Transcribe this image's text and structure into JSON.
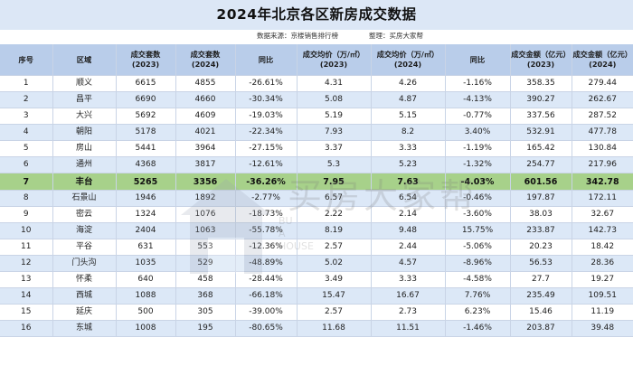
{
  "title": "2024年北京各区新房成交数据",
  "source_label": "数据来源：京楼销售排行榜",
  "organizer_label": "整理：买房大家帮",
  "watermark": {
    "text": "买房大家帮",
    "sub_lines": [
      "BU",
      "A",
      "HOUSE"
    ]
  },
  "colors": {
    "header_bg": "#b9cdea",
    "title_bg": "#dce7f6",
    "stripe": "#dce8f7",
    "highlight_row": "#a7d18a"
  },
  "table": {
    "headers": [
      "序号",
      "区域",
      "成交套数\n(2023)",
      "成交套数\n(2024)",
      "同比",
      "成交均价（万/㎡）\n(2023)",
      "成交均价（万/㎡）\n(2024)",
      "同比",
      "成交金额（亿元）\n(2023)",
      "成交金额（亿元）\n(2024)"
    ],
    "rows": [
      [
        "1",
        "顺义",
        "6615",
        "4855",
        "-26.61%",
        "4.31",
        "4.26",
        "-1.16%",
        "358.35",
        "279.44"
      ],
      [
        "2",
        "昌平",
        "6690",
        "4660",
        "-30.34%",
        "5.08",
        "4.87",
        "-4.13%",
        "390.27",
        "262.67"
      ],
      [
        "3",
        "大兴",
        "5692",
        "4609",
        "-19.03%",
        "5.19",
        "5.15",
        "-0.77%",
        "337.56",
        "287.52"
      ],
      [
        "4",
        "朝阳",
        "5178",
        "4021",
        "-22.34%",
        "7.93",
        "8.2",
        "3.40%",
        "532.91",
        "477.78"
      ],
      [
        "5",
        "房山",
        "5441",
        "3964",
        "-27.15%",
        "3.37",
        "3.33",
        "-1.19%",
        "165.42",
        "130.84"
      ],
      [
        "6",
        "通州",
        "4368",
        "3817",
        "-12.61%",
        "5.3",
        "5.23",
        "-1.32%",
        "254.77",
        "217.96"
      ],
      [
        "7",
        "丰台",
        "5265",
        "3356",
        "-36.26%",
        "7.95",
        "7.63",
        "-4.03%",
        "601.56",
        "342.78"
      ],
      [
        "8",
        "石景山",
        "1946",
        "1892",
        "-2.77%",
        "6.57",
        "6.54",
        "-0.46%",
        "197.87",
        "172.11"
      ],
      [
        "9",
        "密云",
        "1324",
        "1076",
        "-18.73%",
        "2.22",
        "2.14",
        "-3.60%",
        "38.03",
        "32.67"
      ],
      [
        "10",
        "海淀",
        "2404",
        "1063",
        "-55.78%",
        "8.19",
        "9.48",
        "15.75%",
        "233.87",
        "142.73"
      ],
      [
        "11",
        "平谷",
        "631",
        "553",
        "-12.36%",
        "2.57",
        "2.44",
        "-5.06%",
        "20.23",
        "18.42"
      ],
      [
        "12",
        "门头沟",
        "1035",
        "529",
        "-48.89%",
        "5.02",
        "4.57",
        "-8.96%",
        "56.53",
        "28.36"
      ],
      [
        "13",
        "怀柔",
        "640",
        "458",
        "-28.44%",
        "3.49",
        "3.33",
        "-4.58%",
        "27.7",
        "19.27"
      ],
      [
        "14",
        "西城",
        "1088",
        "368",
        "-66.18%",
        "15.47",
        "16.67",
        "7.76%",
        "235.49",
        "109.51"
      ],
      [
        "15",
        "延庆",
        "500",
        "305",
        "-39.00%",
        "2.57",
        "2.73",
        "6.23%",
        "15.46",
        "11.19"
      ],
      [
        "16",
        "东城",
        "1008",
        "195",
        "-80.65%",
        "11.68",
        "11.51",
        "-1.46%",
        "203.87",
        "39.48"
      ]
    ],
    "highlight_row_index": 6
  }
}
